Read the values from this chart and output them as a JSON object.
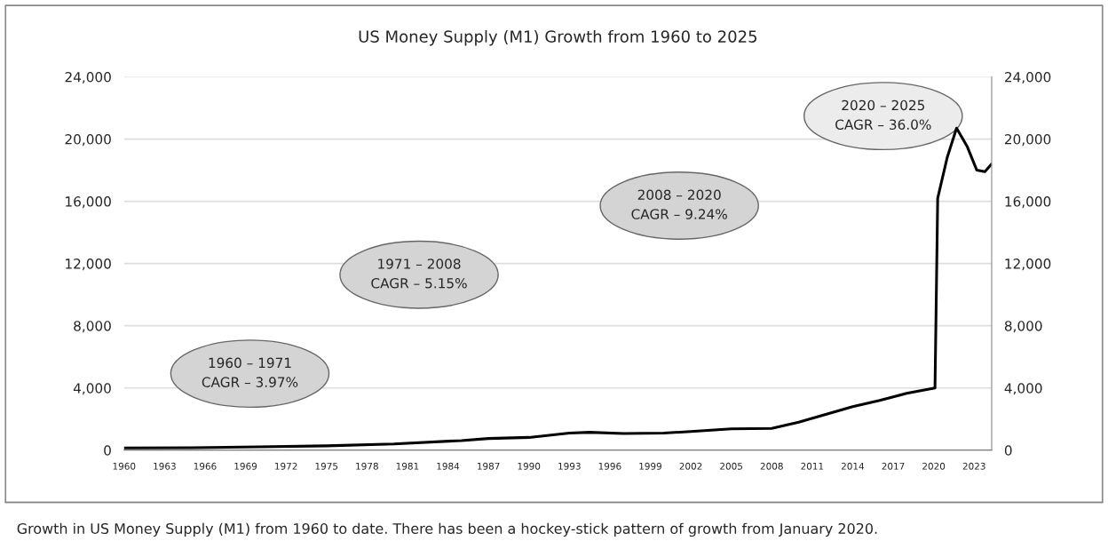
{
  "chart_data": {
    "type": "line",
    "title": "US Money Supply (M1) Growth from 1960 to 2025",
    "x": [
      1960,
      1965,
      1970,
      1975,
      1980,
      1985,
      1987,
      1990,
      1993,
      1994.5,
      1997,
      2000,
      2002,
      2005,
      2008,
      2010,
      2012,
      2014,
      2016,
      2018,
      2020.1,
      2020.3,
      2021,
      2021.7,
      2022.5,
      2023.2,
      2023.8,
      2024.3
    ],
    "series": [
      {
        "color": "#000000",
        "values": [
          140,
          160,
          210,
          280,
          400,
          620,
          750,
          820,
          1100,
          1150,
          1070,
          1100,
          1200,
          1370,
          1400,
          1800,
          2300,
          2800,
          3200,
          3650,
          4000,
          16200,
          18800,
          20700,
          19500,
          18000,
          17900,
          18400
        ]
      }
    ],
    "xlim": [
      1960,
      2024.3
    ],
    "xticks": [
      1960,
      1963,
      1966,
      1969,
      1972,
      1975,
      1978,
      1981,
      1984,
      1987,
      1990,
      1993,
      1996,
      1999,
      2002,
      2005,
      2008,
      2011,
      2014,
      2017,
      2020,
      2023
    ],
    "ylim": [
      0,
      24000
    ],
    "yticks": [
      {
        "value": 0,
        "label": "0"
      },
      {
        "value": 4000,
        "label": "4,000"
      },
      {
        "value": 8000,
        "label": "8,000"
      },
      {
        "value": 12000,
        "label": "12,000"
      },
      {
        "value": 16000,
        "label": "16,000"
      },
      {
        "value": 20000,
        "label": "20,000"
      },
      {
        "value": 24000,
        "label": "24,000"
      }
    ],
    "y2lim": [
      0,
      24000
    ],
    "y2ticks": [
      {
        "value": 0,
        "label": "0"
      },
      {
        "value": 4000,
        "label": "4,000"
      },
      {
        "value": 8000,
        "label": "8,000"
      },
      {
        "value": 12000,
        "label": "12,000"
      },
      {
        "value": 16000,
        "label": "16,000"
      },
      {
        "value": 20000,
        "label": "20,000"
      },
      {
        "value": 24000,
        "label": "24,000"
      }
    ],
    "grid": "y",
    "line_style": "solid",
    "marker": "none",
    "annotations": [
      "1960 – 1971\nCAGR – 3.97%",
      "1971 – 2008\nCAGR – 5.15%",
      "2008 – 2020\nCAGR – 9.24%",
      "2020 – 2025\nCAGR – 36.0%",
      "Growth in US Money Supply (M1) from 1960 to date. There has been a hockey-stick pattern of growth from January 2020."
    ]
  }
}
